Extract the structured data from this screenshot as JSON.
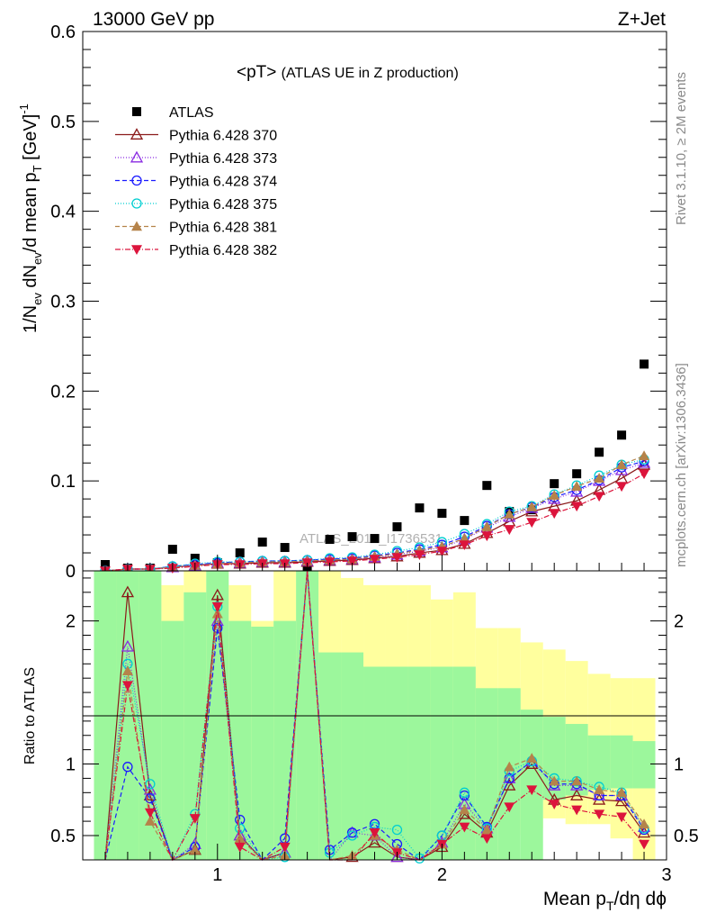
{
  "header": {
    "energy_label": "13000 GeV pp",
    "process_label": "Z+Jet"
  },
  "side_labels": {
    "rivet": "Rivet 3.1.10, ≥ 2M events",
    "mcplots": "mcplots.cern.ch [arXiv:1306.3436]"
  },
  "chart_data": [
    {
      "type": "scatter",
      "panel": "main",
      "title_main": "<pT>",
      "title_sub": "(ATLAS UE in Z production)",
      "watermark": "ATLAS_2019_I1736531",
      "ylabel": "1/N_ev dN_ev/d mean p_T [GeV]^-1",
      "xlim": [
        0.4,
        3.0
      ],
      "ylim": [
        0,
        0.6
      ],
      "yticks": [
        0,
        0.1,
        0.2,
        0.3,
        0.4,
        0.5,
        0.6
      ],
      "ytick_labels": [
        "0",
        "0.1",
        "0.2",
        "0.3",
        "0.4",
        "0.5",
        "0.6"
      ],
      "x": [
        0.5,
        0.6,
        0.7,
        0.8,
        0.9,
        1.0,
        1.1,
        1.2,
        1.3,
        1.4,
        1.5,
        1.6,
        1.7,
        1.8,
        1.9,
        2.0,
        2.1,
        2.2,
        2.3,
        2.4,
        2.5,
        2.6,
        2.7,
        2.8,
        2.9
      ],
      "series": [
        {
          "name": "ATLAS",
          "color": "#000000",
          "marker": "square-filled",
          "values": [
            0.007,
            0.003,
            0.003,
            0.024,
            0.014,
            0.009,
            0.02,
            0.032,
            0.026,
            0.004,
            0.035,
            0.038,
            0.036,
            0.049,
            0.07,
            0.064,
            0.056,
            0.095,
            0.066,
            0.068,
            0.097,
            0.108,
            0.132,
            0.151,
            0.23
          ]
        },
        {
          "name": "Pythia 6.428 370",
          "color": "#8b1a1a",
          "marker": "triangle-open",
          "dash": "",
          "values": [
            0.0,
            0.002,
            0.002,
            0.004,
            0.006,
            0.008,
            0.008,
            0.009,
            0.009,
            0.01,
            0.011,
            0.012,
            0.014,
            0.016,
            0.02,
            0.023,
            0.03,
            0.042,
            0.055,
            0.066,
            0.072,
            0.078,
            0.09,
            0.103,
            0.118
          ]
        },
        {
          "name": "Pythia 6.428 373",
          "color": "#8a2be2",
          "marker": "triangle-open",
          "dash": "1,2",
          "values": [
            0.0,
            0.002,
            0.002,
            0.004,
            0.006,
            0.009,
            0.009,
            0.01,
            0.01,
            0.011,
            0.012,
            0.013,
            0.015,
            0.018,
            0.022,
            0.026,
            0.035,
            0.048,
            0.06,
            0.07,
            0.08,
            0.088,
            0.1,
            0.112,
            0.12
          ]
        },
        {
          "name": "Pythia 6.428 374",
          "color": "#1a1aff",
          "marker": "circle-open",
          "dash": "5,3",
          "values": [
            0.0,
            0.002,
            0.002,
            0.005,
            0.007,
            0.009,
            0.01,
            0.011,
            0.011,
            0.012,
            0.013,
            0.014,
            0.017,
            0.02,
            0.024,
            0.029,
            0.038,
            0.05,
            0.063,
            0.071,
            0.082,
            0.09,
            0.101,
            0.115,
            0.122
          ]
        },
        {
          "name": "Pythia 6.428 375",
          "color": "#00ced1",
          "marker": "circle-open",
          "dash": "1,2",
          "values": [
            0.0,
            0.002,
            0.002,
            0.005,
            0.008,
            0.01,
            0.01,
            0.011,
            0.011,
            0.012,
            0.014,
            0.015,
            0.018,
            0.022,
            0.026,
            0.032,
            0.041,
            0.052,
            0.066,
            0.072,
            0.085,
            0.095,
            0.106,
            0.118,
            0.124
          ]
        },
        {
          "name": "Pythia 6.428 381",
          "color": "#b5834a",
          "marker": "triangle-filled",
          "dash": "5,3",
          "values": [
            0.0,
            0.002,
            0.002,
            0.004,
            0.006,
            0.008,
            0.009,
            0.01,
            0.01,
            0.011,
            0.012,
            0.013,
            0.016,
            0.019,
            0.023,
            0.027,
            0.036,
            0.049,
            0.063,
            0.071,
            0.084,
            0.094,
            0.103,
            0.118,
            0.128
          ]
        },
        {
          "name": "Pythia 6.428 382",
          "color": "#dc143c",
          "marker": "triangle-down-filled",
          "dash": "6,2,1,2",
          "values": [
            0.0,
            0.002,
            0.002,
            0.003,
            0.005,
            0.007,
            0.007,
            0.008,
            0.008,
            0.009,
            0.01,
            0.011,
            0.013,
            0.015,
            0.018,
            0.022,
            0.029,
            0.039,
            0.046,
            0.054,
            0.064,
            0.072,
            0.083,
            0.094,
            0.108
          ]
        }
      ]
    },
    {
      "type": "line",
      "panel": "ratio",
      "ylabel": "Ratio to ATLAS",
      "xlabel": "Mean p_T/dη dϕ",
      "xlim": [
        0.4,
        3.0
      ],
      "ylim": [
        0.33,
        2.35
      ],
      "xticks": [
        1,
        2,
        3
      ],
      "xtick_labels": [
        "1",
        "2",
        "3"
      ],
      "yticks": [
        0.5,
        1,
        2
      ],
      "ytick_labels": [
        "0.5",
        "1",
        "2"
      ],
      "band_bins": [
        0.45,
        0.55,
        0.65,
        0.75,
        0.85,
        0.95,
        1.05,
        1.15,
        1.25,
        1.35,
        1.45,
        1.55,
        1.65,
        1.75,
        1.85,
        1.95,
        2.05,
        2.15,
        2.25,
        2.35,
        2.45,
        2.55,
        2.65,
        2.75,
        2.85,
        2.95
      ],
      "band_green_lo": [
        0.33,
        0.33,
        0.33,
        0.33,
        0.33,
        0.33,
        0.33,
        0.33,
        0.33,
        0.33,
        0.33,
        0.33,
        0.33,
        0.33,
        0.33,
        0.33,
        0.33,
        0.33,
        0.33,
        0.33,
        0.75,
        0.78,
        0.82,
        0.83,
        0.83
      ],
      "band_green_hi": [
        2.35,
        2.35,
        2.35,
        2.0,
        2.2,
        2.35,
        2.0,
        1.96,
        2.0,
        2.35,
        1.78,
        1.78,
        1.68,
        1.68,
        1.68,
        1.68,
        1.68,
        1.53,
        1.53,
        1.38,
        1.33,
        1.28,
        1.2,
        1.2,
        1.16
      ],
      "band_yellow_lo": [
        0.33,
        0.33,
        0.33,
        0.33,
        0.33,
        0.33,
        0.33,
        0.33,
        0.33,
        0.33,
        0.33,
        0.33,
        0.33,
        0.33,
        0.33,
        0.33,
        0.33,
        0.33,
        0.5,
        0.55,
        0.62,
        0.58,
        0.58,
        0.48,
        0.33
      ],
      "band_yellow_hi": [
        2.35,
        2.35,
        2.35,
        2.25,
        2.35,
        2.35,
        2.25,
        2.0,
        2.35,
        2.35,
        2.35,
        2.3,
        2.25,
        2.25,
        2.25,
        2.15,
        2.2,
        1.95,
        1.95,
        1.85,
        1.8,
        1.72,
        1.63,
        1.6,
        1.6
      ],
      "series": [
        {
          "name": "Pythia 6.428 370",
          "values": [
            0.0,
            2.2,
            0.78,
            0.2,
            0.4,
            2.18,
            0.5,
            0.28,
            0.38,
            2.45,
            0.3,
            0.35,
            0.45,
            0.35,
            0.28,
            0.42,
            0.65,
            0.52,
            0.85,
            1.0,
            0.75,
            0.78,
            0.75,
            0.74,
            0.52
          ]
        },
        {
          "name": "Pythia 6.428 373",
          "values": [
            0.0,
            1.82,
            0.82,
            0.2,
            0.44,
            2.0,
            0.5,
            0.28,
            0.38,
            2.45,
            0.32,
            0.52,
            0.5,
            0.35,
            0.32,
            0.45,
            0.72,
            0.55,
            0.9,
            1.02,
            0.85,
            0.85,
            0.78,
            0.78,
            0.56
          ]
        },
        {
          "name": "Pythia 6.428 374",
          "values": [
            0.0,
            0.98,
            0.76,
            0.2,
            0.42,
            1.95,
            0.61,
            0.28,
            0.48,
            2.45,
            0.4,
            0.52,
            0.58,
            0.44,
            0.32,
            0.5,
            0.78,
            0.56,
            0.9,
            1.02,
            0.86,
            0.86,
            0.78,
            0.78,
            0.54
          ]
        },
        {
          "name": "Pythia 6.428 375",
          "values": [
            0.0,
            1.7,
            0.86,
            0.2,
            0.65,
            2.1,
            0.55,
            0.3,
            0.35,
            2.45,
            0.38,
            0.5,
            0.56,
            0.54,
            0.34,
            0.5,
            0.8,
            0.55,
            0.95,
            1.02,
            0.9,
            0.88,
            0.84,
            0.8,
            0.55
          ]
        },
        {
          "name": "Pythia 6.428 381",
          "values": [
            0.0,
            1.65,
            0.6,
            0.2,
            0.4,
            2.05,
            0.48,
            0.28,
            0.36,
            2.45,
            0.3,
            0.36,
            0.5,
            0.4,
            0.3,
            0.44,
            0.68,
            0.54,
            0.98,
            1.04,
            0.88,
            0.88,
            0.82,
            0.8,
            0.58
          ]
        },
        {
          "name": "Pythia 6.428 382",
          "values": [
            0.0,
            1.55,
            0.66,
            0.2,
            0.62,
            2.1,
            0.42,
            0.28,
            0.42,
            2.45,
            0.3,
            0.3,
            0.52,
            0.38,
            0.28,
            0.44,
            0.56,
            0.48,
            0.7,
            0.82,
            0.72,
            0.68,
            0.65,
            0.63,
            0.44
          ]
        }
      ]
    }
  ]
}
